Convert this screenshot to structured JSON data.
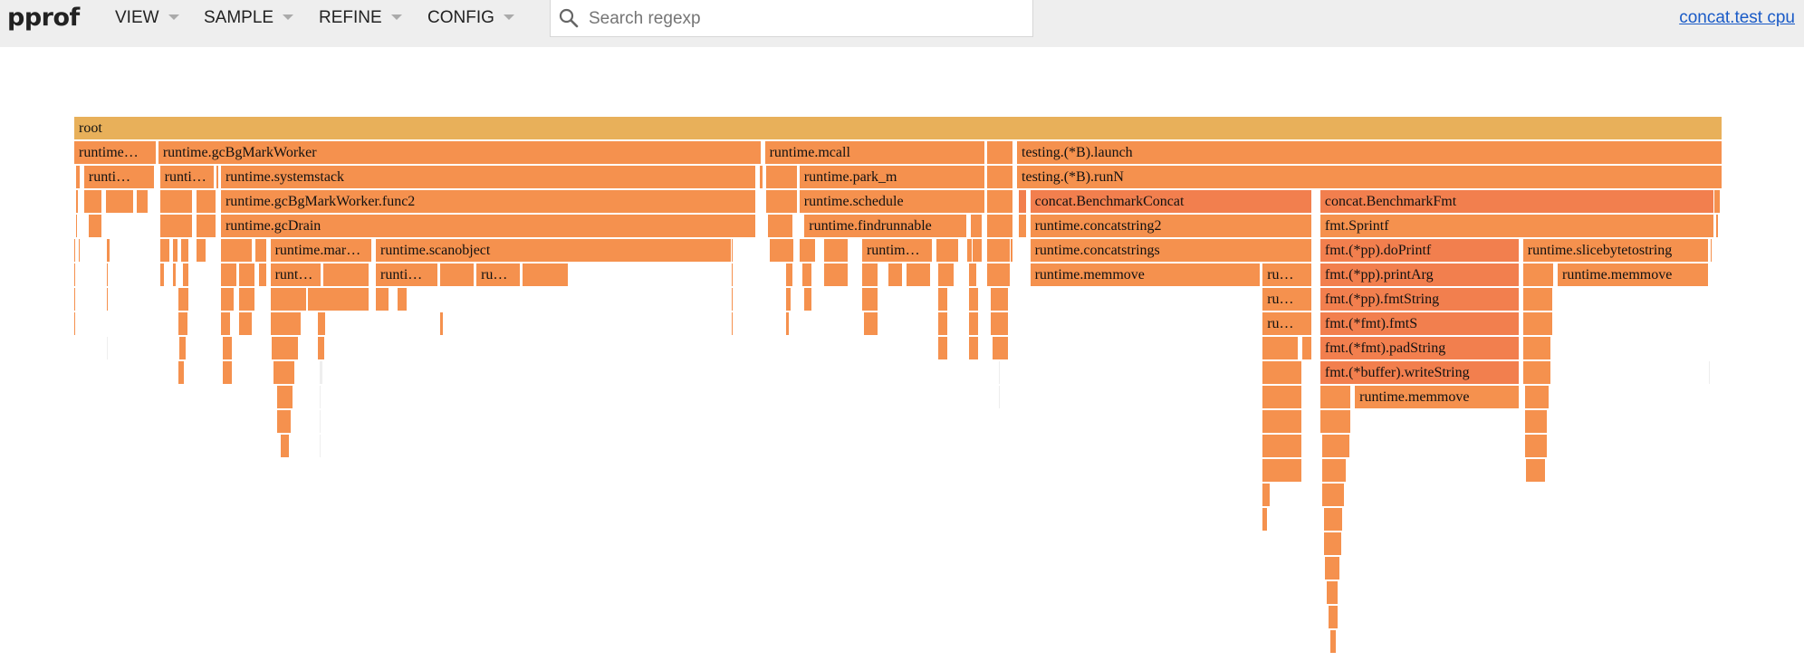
{
  "app": {
    "logo": "pprof"
  },
  "menus": [
    {
      "label": "VIEW"
    },
    {
      "label": "SAMPLE"
    },
    {
      "label": "REFINE"
    },
    {
      "label": "CONFIG"
    }
  ],
  "search": {
    "placeholder": "Search regexp",
    "value": ""
  },
  "profile_link": "concat.test cpu",
  "colors": {
    "root": "#e8b05a",
    "runtime": "#f5914e",
    "dark": "#f27f4e",
    "thin": "#eeeeee"
  },
  "flame": {
    "nodes": [
      {
        "label": "root",
        "depth": 0,
        "from": 0,
        "to": 1000,
        "tone": "root"
      },
      {
        "label": "runtime…",
        "depth": 1,
        "from": 0,
        "to": 50,
        "tone": "runtime"
      },
      {
        "label": "runtime.gcBgMarkWorker",
        "depth": 1,
        "from": 51,
        "to": 417,
        "tone": "runtime"
      },
      {
        "label": "runtime.mcall",
        "depth": 1,
        "from": 419,
        "to": 553,
        "tone": "runtime"
      },
      {
        "label": "",
        "depth": 1,
        "from": 554,
        "to": 570,
        "tone": "runtime"
      },
      {
        "label": "testing.(*B).launch",
        "depth": 1,
        "from": 572,
        "to": 1000,
        "tone": "runtime"
      },
      {
        "label": "runti…",
        "depth": 2,
        "from": 6,
        "to": 49,
        "tone": "runtime"
      },
      {
        "label": "runti…",
        "depth": 2,
        "from": 52,
        "to": 85,
        "tone": "runtime"
      },
      {
        "label": "runtime.systemstack",
        "depth": 2,
        "from": 89,
        "to": 414,
        "tone": "runtime"
      },
      {
        "label": "",
        "depth": 2,
        "from": 420,
        "to": 439,
        "tone": "runtime"
      },
      {
        "label": "runtime.park_m",
        "depth": 2,
        "from": 440,
        "to": 553,
        "tone": "runtime"
      },
      {
        "label": "",
        "depth": 2,
        "from": 554,
        "to": 570,
        "tone": "runtime"
      },
      {
        "label": "testing.(*B).runN",
        "depth": 2,
        "from": 572,
        "to": 1000,
        "tone": "runtime"
      },
      {
        "label": "",
        "depth": 3,
        "from": 6,
        "to": 17,
        "tone": "runtime"
      },
      {
        "label": "",
        "depth": 3,
        "from": 19,
        "to": 36,
        "tone": "runtime"
      },
      {
        "label": "",
        "depth": 3,
        "from": 38,
        "to": 45,
        "tone": "runtime"
      },
      {
        "label": "",
        "depth": 3,
        "from": 52,
        "to": 72,
        "tone": "runtime"
      },
      {
        "label": "",
        "depth": 3,
        "from": 74,
        "to": 86,
        "tone": "runtime"
      },
      {
        "label": "runtime.gcBgMarkWorker.func2",
        "depth": 3,
        "from": 89,
        "to": 414,
        "tone": "runtime"
      },
      {
        "label": "",
        "depth": 3,
        "from": 420,
        "to": 439,
        "tone": "runtime"
      },
      {
        "label": "runtime.schedule",
        "depth": 3,
        "from": 440,
        "to": 553,
        "tone": "runtime"
      },
      {
        "label": "",
        "depth": 3,
        "from": 554,
        "to": 570,
        "tone": "runtime"
      },
      {
        "label": "",
        "depth": 3,
        "from": 573,
        "to": 578,
        "tone": "dark"
      },
      {
        "label": "concat.BenchmarkConcat",
        "depth": 3,
        "from": 580,
        "to": 751,
        "tone": "dark"
      },
      {
        "label": "concat.BenchmarkFmt",
        "depth": 3,
        "from": 756,
        "to": 995,
        "tone": "dark"
      },
      {
        "label": "",
        "depth": 4,
        "from": 9,
        "to": 17,
        "tone": "runtime"
      },
      {
        "label": "",
        "depth": 4,
        "from": 52,
        "to": 72,
        "tone": "runtime"
      },
      {
        "label": "",
        "depth": 4,
        "from": 74,
        "to": 86,
        "tone": "runtime"
      },
      {
        "label": "runtime.gcDrain",
        "depth": 4,
        "from": 89,
        "to": 414,
        "tone": "runtime"
      },
      {
        "label": "",
        "depth": 4,
        "from": 421,
        "to": 436,
        "tone": "runtime"
      },
      {
        "label": "runtime.findrunnable",
        "depth": 4,
        "from": 443,
        "to": 542,
        "tone": "runtime"
      },
      {
        "label": "",
        "depth": 4,
        "from": 544,
        "to": 551,
        "tone": "runtime"
      },
      {
        "label": "",
        "depth": 4,
        "from": 554,
        "to": 570,
        "tone": "runtime"
      },
      {
        "label": "",
        "depth": 4,
        "from": 573,
        "to": 578,
        "tone": "runtime"
      },
      {
        "label": "runtime.concatstring2",
        "depth": 4,
        "from": 580,
        "to": 751,
        "tone": "runtime"
      },
      {
        "label": "fmt.Sprintf",
        "depth": 4,
        "from": 756,
        "to": 995,
        "tone": "runtime"
      },
      {
        "label": "",
        "depth": 5,
        "from": 52,
        "to": 58,
        "tone": "runtime"
      },
      {
        "label": "",
        "depth": 5,
        "from": 89,
        "to": 108,
        "tone": "runtime"
      },
      {
        "label": "runtime.mar…",
        "depth": 5,
        "from": 119,
        "to": 181,
        "tone": "runtime"
      },
      {
        "label": "runtime.scanobject",
        "depth": 5,
        "from": 183,
        "to": 399,
        "tone": "runtime"
      },
      {
        "label": "",
        "depth": 5,
        "from": 422,
        "to": 436,
        "tone": "runtime"
      },
      {
        "label": "runtim…",
        "depth": 5,
        "from": 478,
        "to": 521,
        "tone": "runtime"
      },
      {
        "label": "",
        "depth": 5,
        "from": 523,
        "to": 537,
        "tone": "runtime"
      },
      {
        "label": "",
        "depth": 5,
        "from": 544,
        "to": 551,
        "tone": "runtime"
      },
      {
        "label": "",
        "depth": 5,
        "from": 554,
        "to": 570,
        "tone": "runtime"
      },
      {
        "label": "runtime.concatstrings",
        "depth": 5,
        "from": 580,
        "to": 751,
        "tone": "runtime"
      },
      {
        "label": "fmt.(*pp).doPrintf",
        "depth": 5,
        "from": 756,
        "to": 877,
        "tone": "dark"
      },
      {
        "label": "runtime.slicebytetostring",
        "depth": 5,
        "from": 879,
        "to": 992,
        "tone": "runtime"
      },
      {
        "label": "",
        "depth": 6,
        "from": 89,
        "to": 99,
        "tone": "runtime"
      },
      {
        "label": "runt…",
        "depth": 6,
        "from": 119,
        "to": 150,
        "tone": "runtime"
      },
      {
        "label": "",
        "depth": 6,
        "from": 151,
        "to": 179,
        "tone": "runtime"
      },
      {
        "label": "runti…",
        "depth": 6,
        "from": 183,
        "to": 221,
        "tone": "runtime"
      },
      {
        "label": "",
        "depth": 6,
        "from": 222,
        "to": 243,
        "tone": "runtime"
      },
      {
        "label": "ru…",
        "depth": 6,
        "from": 244,
        "to": 271,
        "tone": "runtime"
      },
      {
        "label": "",
        "depth": 6,
        "from": 272,
        "to": 300,
        "tone": "runtime"
      },
      {
        "label": "",
        "depth": 6,
        "from": 478,
        "to": 488,
        "tone": "runtime"
      },
      {
        "label": "",
        "depth": 6,
        "from": 494,
        "to": 503,
        "tone": "runtime"
      },
      {
        "label": "runtime.memmove",
        "depth": 6,
        "from": 580,
        "to": 720,
        "tone": "runtime"
      },
      {
        "label": "ru…",
        "depth": 6,
        "from": 721,
        "to": 751,
        "tone": "runtime"
      },
      {
        "label": "fmt.(*pp).printArg",
        "depth": 6,
        "from": 756,
        "to": 877,
        "tone": "dark"
      },
      {
        "label": "",
        "depth": 6,
        "from": 879,
        "to": 898,
        "tone": "runtime"
      },
      {
        "label": "runtime.memmove",
        "depth": 6,
        "from": 900,
        "to": 992,
        "tone": "runtime"
      },
      {
        "label": "",
        "depth": 7,
        "from": 119,
        "to": 141,
        "tone": "runtime"
      },
      {
        "label": "",
        "depth": 7,
        "from": 142,
        "to": 179,
        "tone": "runtime"
      },
      {
        "label": "",
        "depth": 7,
        "from": 183,
        "to": 191,
        "tone": "runtime"
      },
      {
        "label": "",
        "depth": 7,
        "from": 478,
        "to": 488,
        "tone": "runtime"
      },
      {
        "label": "ru…",
        "depth": 7,
        "from": 721,
        "to": 751,
        "tone": "runtime"
      },
      {
        "label": "fmt.(*pp).fmtString",
        "depth": 7,
        "from": 756,
        "to": 877,
        "tone": "dark"
      },
      {
        "label": "",
        "depth": 8,
        "from": 119,
        "to": 138,
        "tone": "runtime"
      },
      {
        "label": "",
        "depth": 8,
        "from": 479,
        "to": 488,
        "tone": "runtime"
      },
      {
        "label": "ru…",
        "depth": 8,
        "from": 721,
        "to": 751,
        "tone": "runtime"
      },
      {
        "label": "fmt.(*fmt).fmtS",
        "depth": 8,
        "from": 756,
        "to": 877,
        "tone": "dark"
      },
      {
        "label": "",
        "depth": 9,
        "from": 120,
        "to": 136,
        "tone": "runtime"
      },
      {
        "label": "",
        "depth": 9,
        "from": 721,
        "to": 743,
        "tone": "runtime"
      },
      {
        "label": "fmt.(*fmt).padString",
        "depth": 9,
        "from": 756,
        "to": 877,
        "tone": "dark"
      },
      {
        "label": "",
        "depth": 10,
        "from": 121,
        "to": 134,
        "tone": "runtime"
      },
      {
        "label": "fmt.(*buffer).writeString",
        "depth": 10,
        "from": 756,
        "to": 877,
        "tone": "dark"
      },
      {
        "label": "",
        "depth": 11,
        "from": 123,
        "to": 133,
        "tone": "runtime"
      },
      {
        "label": "",
        "depth": 11,
        "from": 756,
        "to": 775,
        "tone": "runtime"
      },
      {
        "label": "runtime.memmove",
        "depth": 11,
        "from": 777,
        "to": 877,
        "tone": "runtime"
      },
      {
        "label": "",
        "depth": 12,
        "from": 123,
        "to": 132,
        "tone": "runtime"
      },
      {
        "label": "",
        "depth": 12,
        "from": 756,
        "to": 775,
        "tone": "runtime"
      },
      {
        "label": "",
        "depth": 13,
        "from": 125,
        "to": 131,
        "tone": "runtime"
      },
      {
        "label": "",
        "depth": 13,
        "from": 757,
        "to": 774,
        "tone": "runtime"
      }
    ],
    "ticks": [
      {
        "depth": 2,
        "from": 1,
        "to": 4
      },
      {
        "depth": 2,
        "from": 86,
        "to": 88
      },
      {
        "depth": 2,
        "from": 416,
        "to": 418
      },
      {
        "depth": 3,
        "from": 1,
        "to": 3
      },
      {
        "depth": 3,
        "from": 995,
        "to": 999
      },
      {
        "depth": 4,
        "from": 1,
        "to": 2
      },
      {
        "depth": 4,
        "from": 996,
        "to": 998
      },
      {
        "depth": 5,
        "from": 0,
        "to": 1
      },
      {
        "depth": 5,
        "from": 3,
        "to": 4
      },
      {
        "depth": 5,
        "from": 20,
        "to": 22
      },
      {
        "depth": 5,
        "from": 24,
        "to": 25
      },
      {
        "depth": 5,
        "from": 30,
        "to": 31
      },
      {
        "depth": 5,
        "from": 60,
        "to": 63
      },
      {
        "depth": 5,
        "from": 65,
        "to": 70
      },
      {
        "depth": 5,
        "from": 74,
        "to": 80
      },
      {
        "depth": 5,
        "from": 110,
        "to": 117
      },
      {
        "depth": 5,
        "from": 399,
        "to": 400
      },
      {
        "depth": 5,
        "from": 430,
        "to": 437
      },
      {
        "depth": 5,
        "from": 440,
        "to": 450
      },
      {
        "depth": 5,
        "from": 455,
        "to": 470
      },
      {
        "depth": 5,
        "from": 542,
        "to": 545
      },
      {
        "depth": 5,
        "from": 555,
        "to": 568
      },
      {
        "depth": 5,
        "from": 993,
        "to": 994
      },
      {
        "depth": 6,
        "from": 0,
        "to": 1
      },
      {
        "depth": 6,
        "from": 2,
        "to": 3
      },
      {
        "depth": 6,
        "from": 20,
        "to": 21
      },
      {
        "depth": 6,
        "from": 24,
        "to": 25
      },
      {
        "depth": 6,
        "from": 52,
        "to": 55
      },
      {
        "depth": 6,
        "from": 60,
        "to": 62
      },
      {
        "depth": 6,
        "from": 66,
        "to": 70
      },
      {
        "depth": 6,
        "from": 100,
        "to": 110
      },
      {
        "depth": 6,
        "from": 112,
        "to": 117
      },
      {
        "depth": 6,
        "from": 399,
        "to": 400
      },
      {
        "depth": 6,
        "from": 432,
        "to": 436
      },
      {
        "depth": 6,
        "from": 442,
        "to": 448
      },
      {
        "depth": 6,
        "from": 455,
        "to": 470
      },
      {
        "depth": 6,
        "from": 505,
        "to": 520
      },
      {
        "depth": 6,
        "from": 524,
        "to": 534
      },
      {
        "depth": 6,
        "from": 543,
        "to": 548
      },
      {
        "depth": 6,
        "from": 554,
        "to": 568
      },
      {
        "depth": 7,
        "from": 0,
        "to": 1
      },
      {
        "depth": 7,
        "from": 20,
        "to": 21
      },
      {
        "depth": 7,
        "from": 63,
        "to": 70
      },
      {
        "depth": 7,
        "from": 89,
        "to": 97
      },
      {
        "depth": 7,
        "from": 100,
        "to": 110
      },
      {
        "depth": 7,
        "from": 196,
        "to": 202
      },
      {
        "depth": 7,
        "from": 399,
        "to": 400
      },
      {
        "depth": 7,
        "from": 432,
        "to": 435
      },
      {
        "depth": 7,
        "from": 443,
        "to": 448
      },
      {
        "depth": 7,
        "from": 524,
        "to": 530
      },
      {
        "depth": 7,
        "from": 543,
        "to": 549
      },
      {
        "depth": 7,
        "from": 556,
        "to": 567
      },
      {
        "depth": 7,
        "from": 879,
        "to": 897
      },
      {
        "depth": 8,
        "from": 0,
        "to": 1
      },
      {
        "depth": 8,
        "from": 63,
        "to": 69
      },
      {
        "depth": 8,
        "from": 89,
        "to": 95
      },
      {
        "depth": 8,
        "from": 100,
        "to": 108
      },
      {
        "depth": 8,
        "from": 148,
        "to": 153
      },
      {
        "depth": 8,
        "from": 222,
        "to": 224
      },
      {
        "depth": 8,
        "from": 399,
        "to": 400
      },
      {
        "depth": 8,
        "from": 432,
        "to": 434
      },
      {
        "depth": 8,
        "from": 524,
        "to": 530
      },
      {
        "depth": 8,
        "from": 543,
        "to": 549
      },
      {
        "depth": 8,
        "from": 556,
        "to": 567
      },
      {
        "depth": 8,
        "from": 879,
        "to": 897
      },
      {
        "depth": 9,
        "from": 20,
        "to": 21
      },
      {
        "depth": 9,
        "from": 64,
        "to": 68
      },
      {
        "depth": 9,
        "from": 90,
        "to": 96
      },
      {
        "depth": 9,
        "from": 148,
        "to": 152
      },
      {
        "depth": 9,
        "from": 524,
        "to": 530
      },
      {
        "depth": 9,
        "from": 543,
        "to": 549
      },
      {
        "depth": 9,
        "from": 557,
        "to": 567
      },
      {
        "depth": 9,
        "from": 745,
        "to": 751
      },
      {
        "depth": 9,
        "from": 879,
        "to": 896
      },
      {
        "depth": 10,
        "from": 63,
        "to": 67
      },
      {
        "depth": 10,
        "from": 90,
        "to": 96
      },
      {
        "depth": 10,
        "from": 149,
        "to": 151
      },
      {
        "depth": 10,
        "from": 561,
        "to": 562
      },
      {
        "depth": 10,
        "from": 721,
        "to": 745
      },
      {
        "depth": 10,
        "from": 879,
        "to": 896
      },
      {
        "depth": 10,
        "from": 992,
        "to": 993
      },
      {
        "depth": 11,
        "from": 63,
        "to": 64
      },
      {
        "depth": 11,
        "from": 149,
        "to": 150
      },
      {
        "depth": 11,
        "from": 561,
        "to": 562
      },
      {
        "depth": 11,
        "from": 721,
        "to": 745
      },
      {
        "depth": 11,
        "from": 880,
        "to": 895
      },
      {
        "depth": 12,
        "from": 149,
        "to": 150
      },
      {
        "depth": 12,
        "from": 721,
        "to": 745
      },
      {
        "depth": 12,
        "from": 880,
        "to": 894
      },
      {
        "depth": 13,
        "from": 149,
        "to": 150
      },
      {
        "depth": 13,
        "from": 721,
        "to": 745
      },
      {
        "depth": 13,
        "from": 880,
        "to": 894
      },
      {
        "depth": 14,
        "from": 721,
        "to": 745
      },
      {
        "depth": 14,
        "from": 757,
        "to": 772
      },
      {
        "depth": 14,
        "from": 881,
        "to": 893
      },
      {
        "depth": 15,
        "from": 721,
        "to": 726
      },
      {
        "depth": 15,
        "from": 757,
        "to": 771
      },
      {
        "depth": 16,
        "from": 721,
        "to": 724
      },
      {
        "depth": 16,
        "from": 758,
        "to": 770
      },
      {
        "depth": 17,
        "from": 758,
        "to": 769
      },
      {
        "depth": 18,
        "from": 759,
        "to": 768
      },
      {
        "depth": 19,
        "from": 760,
        "to": 767
      },
      {
        "depth": 20,
        "from": 761,
        "to": 767
      },
      {
        "depth": 21,
        "from": 762,
        "to": 766
      }
    ]
  }
}
